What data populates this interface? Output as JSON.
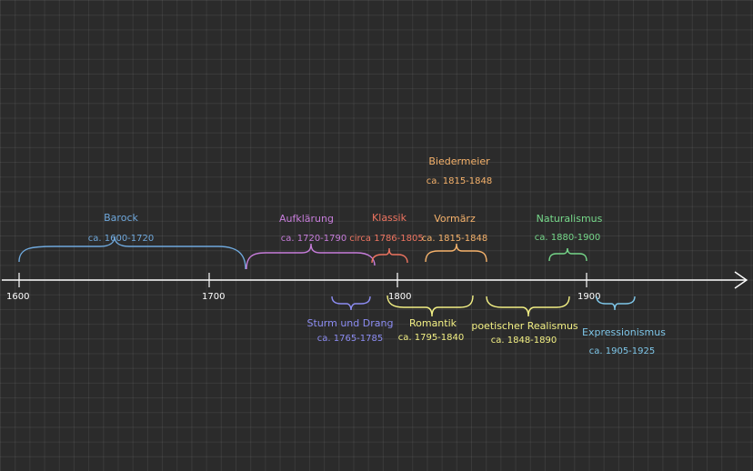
{
  "colors": {
    "background": "#2b2b2b",
    "axis": "#ffffff",
    "baroque": "#6fa8dc",
    "enlightenment": "#c77ddb",
    "classic": "#ee7460",
    "vormaerz": "#f6b26b",
    "biedermeier": "#f6b26b",
    "naturalism": "#76d88a",
    "storm": "#8c8cf2",
    "romantic": "#f3f084",
    "realism": "#f3f084",
    "expressionism": "#7ec6e8"
  },
  "axis": {
    "ticks": [
      {
        "label": "1600",
        "year": 1600
      },
      {
        "label": "1700",
        "year": 1700
      },
      {
        "label": "1800",
        "year": 1800
      },
      {
        "label": "1900",
        "year": 1900
      }
    ]
  },
  "periods": [
    {
      "id": "barock",
      "name": "Barock",
      "range": "ca. 1600-1720",
      "start": 1600,
      "end": 1720,
      "side": "above",
      "color": "#6fa8dc"
    },
    {
      "id": "aufklaerung",
      "name": "Aufklärung",
      "range": "ca. 1720-1790",
      "start": 1720,
      "end": 1790,
      "side": "above",
      "color": "#c77ddb"
    },
    {
      "id": "klassik",
      "name": "Klassik",
      "range": "circa 1786-1805",
      "start": 1786,
      "end": 1805,
      "side": "above",
      "color": "#ee7460"
    },
    {
      "id": "vormaerz",
      "name": "Vormärz",
      "range": "ca. 1815-1848",
      "start": 1815,
      "end": 1848,
      "side": "above",
      "color": "#f6b26b"
    },
    {
      "id": "biedermeier",
      "name": "Biedermeier",
      "range": "ca. 1815-1848",
      "start": 1815,
      "end": 1848,
      "side": "above-high",
      "color": "#f6b26b"
    },
    {
      "id": "naturalismus",
      "name": "Naturalismus",
      "range": "ca. 1880-1900",
      "start": 1880,
      "end": 1900,
      "side": "above",
      "color": "#76d88a"
    },
    {
      "id": "sturm-und-drang",
      "name": "Sturm und Drang",
      "range": "ca. 1765-1785",
      "start": 1765,
      "end": 1785,
      "side": "below",
      "color": "#8c8cf2"
    },
    {
      "id": "romantik",
      "name": "Romantik",
      "range": "ca. 1795-1840",
      "start": 1795,
      "end": 1840,
      "side": "below",
      "color": "#f3f084"
    },
    {
      "id": "poetischer-realismus",
      "name": "poetischer Realismus",
      "range": "ca. 1848-1890",
      "start": 1848,
      "end": 1890,
      "side": "below",
      "color": "#f3f084"
    },
    {
      "id": "expressionismus",
      "name": "Expressionismus",
      "range": "ca. 1905-1925",
      "start": 1905,
      "end": 1925,
      "side": "below",
      "color": "#7ec6e8"
    }
  ]
}
